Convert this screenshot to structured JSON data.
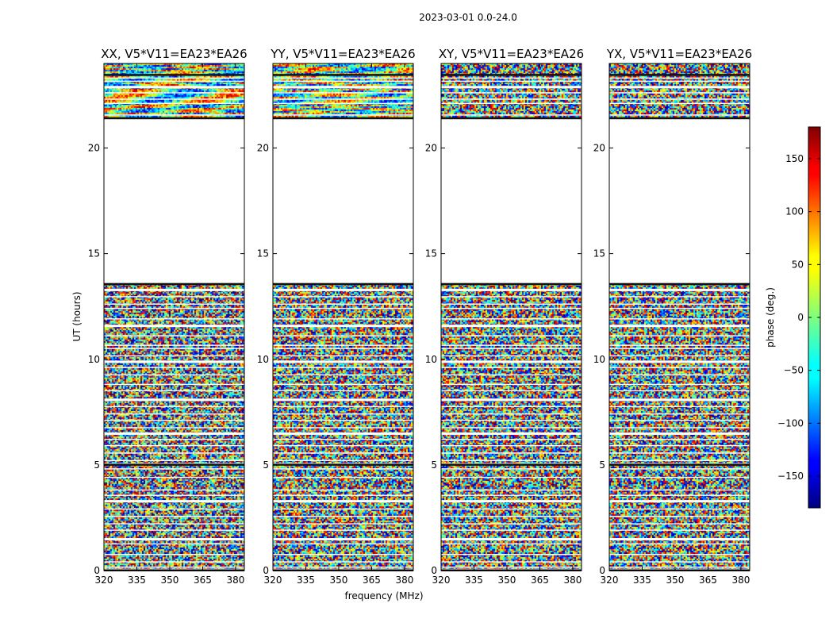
{
  "figure": {
    "suptitle": "2023-03-01 0.0-24.0"
  },
  "chart_data": {
    "type": "heatmap",
    "xlabel": "frequency (MHz)",
    "ylabel": "UT (hours)",
    "xlim": [
      320,
      384
    ],
    "ylim": [
      0,
      24
    ],
    "xticks": [
      "320",
      "335",
      "350",
      "365",
      "380"
    ],
    "xtick_values": [
      320,
      335,
      350,
      365,
      380
    ],
    "yticks": [
      "0",
      "5",
      "10",
      "15",
      "20"
    ],
    "ytick_values": [
      0,
      5,
      10,
      15,
      20
    ],
    "colormap": "jet",
    "colorbar": {
      "label": "phase (deg.)",
      "range": [
        -180,
        180
      ],
      "ticks": [
        "−150",
        "−100",
        "−50",
        "0",
        "50",
        "100",
        "150"
      ],
      "tick_values": [
        -150,
        -100,
        -50,
        0,
        50,
        100,
        150
      ]
    },
    "panels": [
      {
        "name": "XX, V5*V11=EA23*EA26"
      },
      {
        "name": "YY, V5*V11=EA23*EA26"
      },
      {
        "name": "XY, V5*V11=EA23*EA26"
      },
      {
        "name": "YX, V5*V11=EA23*EA26"
      }
    ],
    "data_time_ranges_hours": [
      [
        0,
        13.6
      ],
      [
        21.4,
        24
      ]
    ]
  }
}
